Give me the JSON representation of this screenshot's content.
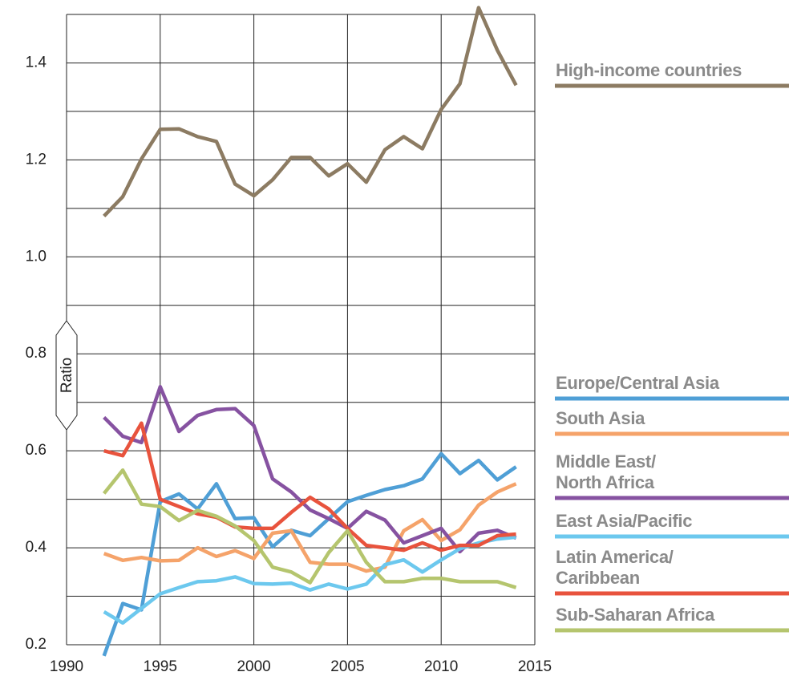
{
  "chart_data": {
    "type": "line",
    "y_label": "Ratio",
    "x": [
      1992,
      1993,
      1994,
      1995,
      1996,
      1997,
      1998,
      1999,
      2000,
      2001,
      2002,
      2003,
      2004,
      2005,
      2006,
      2007,
      2008,
      2009,
      2010,
      2011,
      2012,
      2013,
      2014
    ],
    "series": [
      {
        "name": "High-income countries",
        "color": "#8c7b62",
        "values": [
          1.084,
          1.124,
          1.202,
          1.263,
          1.264,
          1.248,
          1.238,
          1.15,
          1.126,
          1.159,
          1.205,
          1.205,
          1.167,
          1.192,
          1.154,
          1.221,
          1.248,
          1.223,
          1.304,
          1.357,
          1.514,
          1.426,
          1.354
        ]
      },
      {
        "name": "Europe/Central Asia",
        "color": "#4f9fd6",
        "values": [
          0.177,
          0.285,
          0.272,
          0.495,
          0.511,
          0.48,
          0.532,
          0.46,
          0.462,
          0.402,
          0.436,
          0.425,
          0.46,
          0.495,
          0.508,
          0.52,
          0.528,
          0.542,
          0.594,
          0.553,
          0.58,
          0.54,
          0.567
        ]
      },
      {
        "name": "South Asia",
        "color": "#f5a36a",
        "values": [
          0.388,
          0.374,
          0.38,
          0.373,
          0.374,
          0.4,
          0.382,
          0.394,
          0.378,
          0.43,
          0.435,
          0.37,
          0.366,
          0.366,
          0.352,
          0.36,
          0.435,
          0.458,
          0.415,
          0.437,
          0.488,
          0.515,
          0.532
        ]
      },
      {
        "name": "Middle East/\nNorth Africa",
        "color": "#8652a1",
        "values": [
          0.669,
          0.63,
          0.617,
          0.732,
          0.64,
          0.673,
          0.685,
          0.687,
          0.652,
          0.542,
          0.515,
          0.478,
          0.46,
          0.44,
          0.475,
          0.457,
          0.41,
          0.425,
          0.44,
          0.392,
          0.43,
          0.436,
          0.42
        ]
      },
      {
        "name": "East Asia/Pacific",
        "color": "#6cc8ee",
        "values": [
          0.268,
          0.245,
          0.275,
          0.305,
          0.318,
          0.33,
          0.332,
          0.34,
          0.326,
          0.325,
          0.327,
          0.313,
          0.325,
          0.315,
          0.325,
          0.365,
          0.375,
          0.35,
          0.375,
          0.398,
          0.41,
          0.418,
          0.422
        ]
      },
      {
        "name": "Latin America/\nCaribbean",
        "color": "#e8533d",
        "values": [
          0.6,
          0.59,
          0.657,
          0.5,
          0.485,
          0.47,
          0.463,
          0.443,
          0.44,
          0.44,
          0.473,
          0.504,
          0.48,
          0.44,
          0.405,
          0.4,
          0.395,
          0.41,
          0.395,
          0.405,
          0.405,
          0.425,
          0.428
        ]
      },
      {
        "name": "Sub-Saharan Africa",
        "color": "#b5c56e",
        "values": [
          0.512,
          0.56,
          0.49,
          0.485,
          0.456,
          0.477,
          0.465,
          0.445,
          0.415,
          0.36,
          0.35,
          0.328,
          0.39,
          0.435,
          0.37,
          0.33,
          0.33,
          0.337,
          0.337,
          0.33,
          0.33,
          0.33,
          0.318
        ]
      }
    ],
    "xlim": [
      1990,
      2015
    ],
    "xticks": [
      1990,
      1995,
      2000,
      2005,
      2010,
      2015
    ],
    "ylim": [
      0.2,
      1.5
    ],
    "yticks": [
      0.2,
      0.4,
      0.6,
      0.8,
      {
        "value": 1,
        "label": "1.0"
      },
      1.2,
      1.4
    ],
    "yticks_minor": [
      0.3,
      0.5,
      0.7,
      0.9,
      1.1,
      1.3,
      1.5
    ],
    "grid": true
  }
}
